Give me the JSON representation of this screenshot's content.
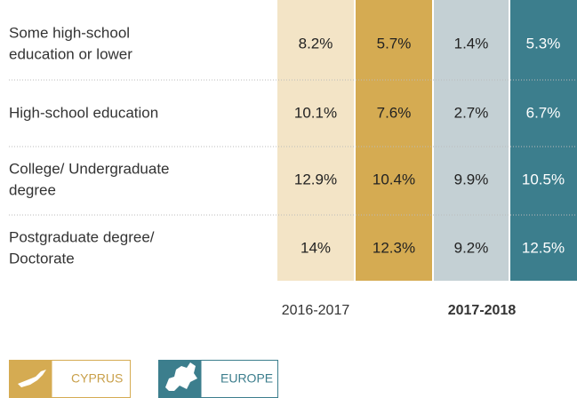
{
  "table": {
    "rows": [
      {
        "label": [
          "Some high-school",
          "education or lower"
        ],
        "cells": [
          "8.2%",
          "5.7%",
          "1.4%",
          "5.3%"
        ]
      },
      {
        "label": [
          "High-school education"
        ],
        "cells": [
          "10.1%",
          "7.6%",
          "2.7%",
          "6.7%"
        ]
      },
      {
        "label": [
          "College/ Undergraduate",
          "degree"
        ],
        "cells": [
          "12.9%",
          "10.4%",
          "9.9%",
          "10.5%"
        ]
      },
      {
        "label": [
          "Postgraduate degree/",
          "Doctorate"
        ],
        "cells": [
          "14%",
          "12.3%",
          "9.2%",
          "12.5%"
        ]
      }
    ],
    "periods": [
      "2016-2017",
      "2017-2018"
    ]
  },
  "legend": [
    "CYPRUS",
    "EUROPE"
  ]
}
